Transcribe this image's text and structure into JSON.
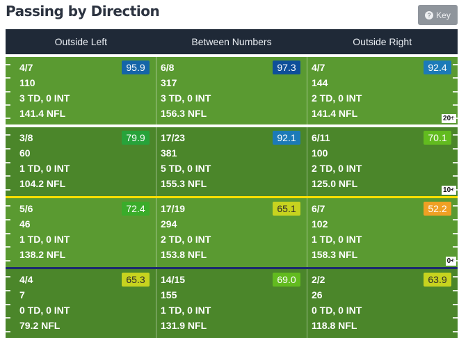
{
  "title": "Passing by Direction",
  "key_button": {
    "label": "Key",
    "icon": "question-circle-icon"
  },
  "columns": [
    "Outside Left",
    "Between Numbers",
    "Outside Right"
  ],
  "zones": [
    {
      "marker": "20+",
      "cells": [
        {
          "comp": "4/7",
          "yards": "110",
          "td_int": "3 TD, 0 INT",
          "rating": "141.4 NFL",
          "grade": "95.9",
          "grade_color": "#1565a8"
        },
        {
          "comp": "6/8",
          "yards": "317",
          "td_int": "3 TD, 0 INT",
          "rating": "156.3 NFL",
          "grade": "97.3",
          "grade_color": "#0e4f9a"
        },
        {
          "comp": "4/7",
          "yards": "144",
          "td_int": "2 TD, 0 INT",
          "rating": "141.4 NFL",
          "grade": "92.4",
          "grade_color": "#1c7ab8"
        }
      ]
    },
    {
      "marker": "10+",
      "cells": [
        {
          "comp": "3/8",
          "yards": "60",
          "td_int": "1 TD, 0 INT",
          "rating": "104.2 NFL",
          "grade": "79.9",
          "grade_color": "#27a33a"
        },
        {
          "comp": "17/23",
          "yards": "381",
          "td_int": "5 TD, 0 INT",
          "rating": "155.3 NFL",
          "grade": "92.1",
          "grade_color": "#1c7ab8"
        },
        {
          "comp": "6/11",
          "yards": "100",
          "td_int": "2 TD, 0 INT",
          "rating": "125.0 NFL",
          "grade": "70.1",
          "grade_color": "#62bb1f"
        }
      ]
    },
    {
      "marker": "0+",
      "cells": [
        {
          "comp": "5/6",
          "yards": "46",
          "td_int": "1 TD, 0 INT",
          "rating": "138.2 NFL",
          "grade": "72.4",
          "grade_color": "#3aac2a"
        },
        {
          "comp": "17/19",
          "yards": "294",
          "td_int": "2 TD, 0 INT",
          "rating": "153.8 NFL",
          "grade": "65.1",
          "grade_color": "#c7d31f"
        },
        {
          "comp": "6/7",
          "yards": "102",
          "td_int": "1 TD, 0 INT",
          "rating": "158.3 NFL",
          "grade": "52.2",
          "grade_color": "#f0a024"
        }
      ]
    },
    {
      "marker": "",
      "cells": [
        {
          "comp": "4/4",
          "yards": "7",
          "td_int": "0 TD, 0 INT",
          "rating": "79.2 NFL",
          "grade": "65.3",
          "grade_color": "#c7d31f"
        },
        {
          "comp": "14/15",
          "yards": "155",
          "td_int": "1 TD, 0 INT",
          "rating": "131.9 NFL",
          "grade": "69.0",
          "grade_color": "#62bb1f"
        },
        {
          "comp": "2/2",
          "yards": "26",
          "td_int": "0 TD, 0 INT",
          "rating": "118.8 NFL",
          "grade": "63.9",
          "grade_color": "#c7d31f"
        }
      ]
    }
  ]
}
